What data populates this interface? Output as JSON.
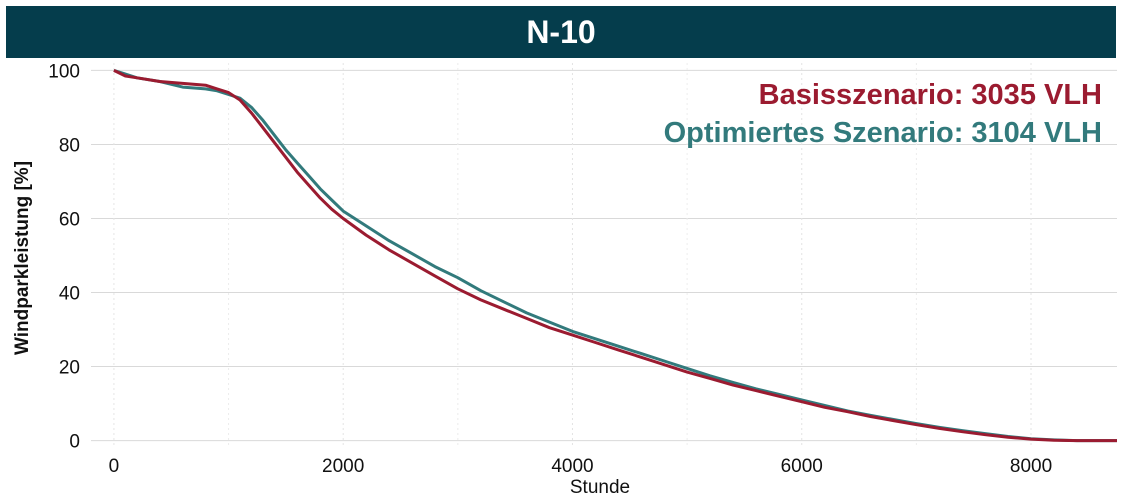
{
  "chart_data": {
    "type": "line",
    "title": "N-10",
    "xlabel": "Stunde",
    "ylabel": "Windparkleistung [%]",
    "xlim": [
      -200,
      8750
    ],
    "ylim": [
      -2,
      102
    ],
    "xticks": [
      0,
      2000,
      4000,
      6000,
      8000
    ],
    "yticks": [
      0,
      20,
      40,
      60,
      80,
      100
    ],
    "grid": true,
    "legend": "none",
    "annotations": [
      {
        "text": "Basisszenario: 3035 VLH",
        "color": "#9b1b30"
      },
      {
        "text": "Optimiertes Szenario: 3104 VLH",
        "color": "#327a7c"
      }
    ],
    "series": [
      {
        "name": "Basisszenario",
        "color": "#9b1b30",
        "x": [
          0,
          100,
          200,
          400,
          600,
          800,
          900,
          1000,
          1100,
          1200,
          1300,
          1400,
          1500,
          1600,
          1700,
          1800,
          1900,
          2000,
          2200,
          2400,
          2600,
          2800,
          3000,
          3200,
          3400,
          3600,
          3800,
          4000,
          4200,
          4400,
          4600,
          4800,
          5000,
          5200,
          5400,
          5600,
          5800,
          6000,
          6200,
          6400,
          6600,
          6800,
          7000,
          7200,
          7400,
          7600,
          7800,
          8000,
          8200,
          8400,
          8600,
          8750
        ],
        "y": [
          100,
          98.5,
          98,
          97,
          96.5,
          96,
          95,
          94,
          92,
          88.5,
          84.5,
          80.5,
          76.5,
          72.5,
          69,
          65.5,
          62.5,
          60,
          55.5,
          51.5,
          48,
          44.5,
          41,
          38,
          35.5,
          33,
          30.5,
          28.5,
          26.5,
          24.5,
          22.5,
          20.5,
          18.5,
          16.8,
          15,
          13.5,
          12,
          10.5,
          9,
          7.8,
          6.5,
          5.4,
          4.3,
          3.3,
          2.4,
          1.6,
          0.9,
          0.4,
          0.1,
          0,
          0,
          0
        ]
      },
      {
        "name": "Optimiertes Szenario",
        "color": "#327a7c",
        "x": [
          0,
          100,
          200,
          400,
          600,
          800,
          900,
          1000,
          1100,
          1200,
          1300,
          1400,
          1500,
          1600,
          1700,
          1800,
          1900,
          2000,
          2200,
          2400,
          2600,
          2800,
          3000,
          3200,
          3400,
          3600,
          3800,
          4000,
          4200,
          4400,
          4600,
          4800,
          5000,
          5200,
          5400,
          5600,
          5800,
          6000,
          6200,
          6400,
          6600,
          6800,
          7000,
          7200,
          7400,
          7600,
          7800,
          8000,
          8200,
          8400,
          8600,
          8750
        ],
        "y": [
          100,
          99,
          98,
          97,
          95.5,
          95,
          94.5,
          93.5,
          92.5,
          90,
          86.5,
          82.5,
          78.5,
          75,
          71.5,
          68,
          65,
          62,
          58,
          54,
          50.5,
          47,
          44,
          40.5,
          37.5,
          34.5,
          32,
          29.5,
          27.5,
          25.5,
          23.5,
          21.5,
          19.5,
          17.5,
          15.7,
          14,
          12.5,
          11,
          9.5,
          8,
          6.8,
          5.7,
          4.6,
          3.6,
          2.7,
          1.9,
          1.1,
          0.5,
          0.2,
          0,
          0,
          0
        ]
      }
    ]
  }
}
